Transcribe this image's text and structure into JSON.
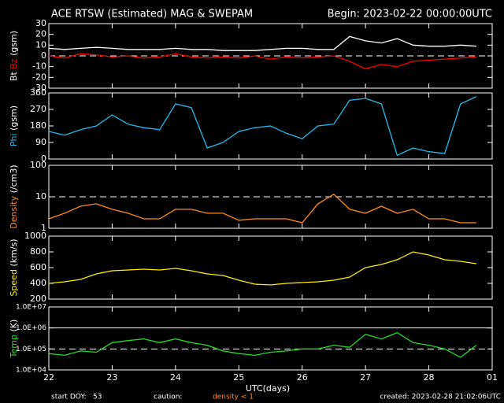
{
  "header": {
    "title": "ACE RTSW (Estimated) MAG & SWEPAM",
    "begin": "Begin: 2023-02-22 00:00:00UTC"
  },
  "footer": {
    "start_label": "start DOY:",
    "start_doy": "53",
    "caution": "caution:",
    "caution_note": "density < 1",
    "created": "created: 2023-02-28 21:02:06UTC",
    "x_label": "UTC(days)"
  },
  "chart_data": [
    {
      "type": "line",
      "y_unit": "(gsm)",
      "x": [
        22,
        22.25,
        22.5,
        22.75,
        23,
        23.25,
        23.5,
        23.75,
        24,
        24.25,
        24.5,
        24.75,
        25,
        25.25,
        25.5,
        25.75,
        26,
        26.25,
        26.5,
        26.75,
        27,
        27.25,
        27.5,
        27.75,
        28,
        28.25,
        28.5,
        28.75
      ],
      "series": [
        {
          "name": "Bt",
          "color": "#ffffff",
          "values": [
            7,
            6,
            7,
            8,
            7,
            6,
            6,
            6,
            7,
            6,
            6,
            5,
            5,
            5,
            6,
            7,
            7,
            6,
            6,
            18,
            14,
            12,
            16,
            10,
            9,
            9,
            10,
            9
          ]
        },
        {
          "name": "Bz",
          "color": "#ff0000",
          "values": [
            0,
            -2,
            2,
            1,
            -1,
            0,
            -2,
            -1,
            2,
            -1,
            -2,
            -1,
            -2,
            0,
            -3,
            -1,
            -2,
            -1,
            0,
            -5,
            -12,
            -8,
            -10,
            -5,
            -4,
            -3,
            -2,
            -1
          ]
        }
      ],
      "xlim": [
        22,
        29
      ],
      "ylim": [
        -30,
        30
      ],
      "yticks": [
        -30,
        -20,
        -10,
        0,
        10,
        20,
        30
      ],
      "reference_lines": [
        0
      ]
    },
    {
      "type": "line",
      "y_unit": "(gsm)",
      "x": [
        22,
        22.25,
        22.5,
        22.75,
        23,
        23.25,
        23.5,
        23.75,
        24,
        24.25,
        24.5,
        24.75,
        25,
        25.25,
        25.5,
        25.75,
        26,
        26.25,
        26.5,
        26.75,
        27,
        27.25,
        27.5,
        27.75,
        28,
        28.25,
        28.5,
        28.75
      ],
      "series": [
        {
          "name": "Phi",
          "color": "#22bbee",
          "values": [
            150,
            130,
            160,
            180,
            240,
            190,
            170,
            160,
            300,
            280,
            60,
            90,
            150,
            170,
            180,
            140,
            110,
            180,
            190,
            320,
            330,
            300,
            20,
            60,
            40,
            30,
            300,
            340
          ]
        }
      ],
      "xlim": [
        22,
        29
      ],
      "ylim": [
        0,
        360
      ],
      "yticks": [
        0,
        90,
        180,
        270,
        360
      ]
    },
    {
      "type": "line",
      "y_unit": "(/cm3)",
      "log": true,
      "x": [
        22,
        22.25,
        22.5,
        22.75,
        23,
        23.25,
        23.5,
        23.75,
        24,
        24.25,
        24.5,
        24.75,
        25,
        25.25,
        25.5,
        25.75,
        26,
        26.25,
        26.5,
        26.75,
        27,
        27.25,
        27.5,
        27.75,
        28,
        28.25,
        28.5,
        28.75
      ],
      "series": [
        {
          "name": "Density",
          "color": "#ff8c1a",
          "values": [
            2,
            3,
            5,
            6,
            4,
            3,
            2,
            2,
            4,
            4,
            3,
            3,
            1.8,
            2,
            2,
            2,
            1.5,
            6,
            12,
            4,
            3,
            5,
            3,
            4,
            2,
            2,
            1.5,
            1.5
          ]
        }
      ],
      "xlim": [
        22,
        29
      ],
      "ylim": [
        1,
        100
      ],
      "yticks": [
        1,
        10,
        100
      ],
      "reference_lines": [
        10
      ]
    },
    {
      "type": "line",
      "y_unit": "(km/s)",
      "x": [
        22,
        22.25,
        22.5,
        22.75,
        23,
        23.25,
        23.5,
        23.75,
        24,
        24.25,
        24.5,
        24.75,
        25,
        25.25,
        25.5,
        25.75,
        26,
        26.25,
        26.5,
        26.75,
        27,
        27.25,
        27.5,
        27.75,
        28,
        28.25,
        28.5,
        28.75
      ],
      "series": [
        {
          "name": "Speed",
          "color": "#ffee00",
          "values": [
            400,
            420,
            450,
            520,
            560,
            570,
            580,
            570,
            590,
            560,
            520,
            500,
            440,
            390,
            380,
            400,
            410,
            420,
            440,
            480,
            600,
            640,
            700,
            800,
            760,
            700,
            680,
            650
          ]
        }
      ],
      "xlim": [
        22,
        29
      ],
      "ylim": [
        200,
        1000
      ],
      "yticks": [
        200,
        400,
        600,
        800,
        1000
      ]
    },
    {
      "type": "line",
      "y_unit": "(K)",
      "log": true,
      "x": [
        22,
        22.25,
        22.5,
        22.75,
        23,
        23.25,
        23.5,
        23.75,
        24,
        24.25,
        24.5,
        24.75,
        25,
        25.25,
        25.5,
        25.75,
        26,
        26.25,
        26.5,
        26.75,
        27,
        27.25,
        27.5,
        27.75,
        28,
        28.25,
        28.5,
        28.75
      ],
      "series": [
        {
          "name": "Temp",
          "color": "#22dd22",
          "values": [
            60000,
            50000,
            80000,
            70000,
            200000,
            250000,
            300000,
            200000,
            300000,
            200000,
            150000,
            80000,
            60000,
            50000,
            70000,
            80000,
            100000,
            100000,
            150000,
            120000,
            500000,
            300000,
            600000,
            200000,
            150000,
            100000,
            40000,
            150000
          ]
        }
      ],
      "xlim": [
        22,
        29
      ],
      "ylim": [
        10000,
        10000000
      ],
      "yticks": [
        {
          "value": 10000,
          "label": "1.0E+04"
        },
        {
          "value": 100000,
          "label": "1.0E+05"
        },
        {
          "value": 1000000,
          "label": "1.0E+06"
        },
        {
          "value": 10000000,
          "label": "1.0E+07"
        }
      ],
      "reference_lines": [
        100000,
        1000000
      ],
      "xticks": [
        22,
        23,
        24,
        25,
        26,
        27,
        28,
        {
          "value": 29,
          "label": "01"
        }
      ]
    }
  ]
}
